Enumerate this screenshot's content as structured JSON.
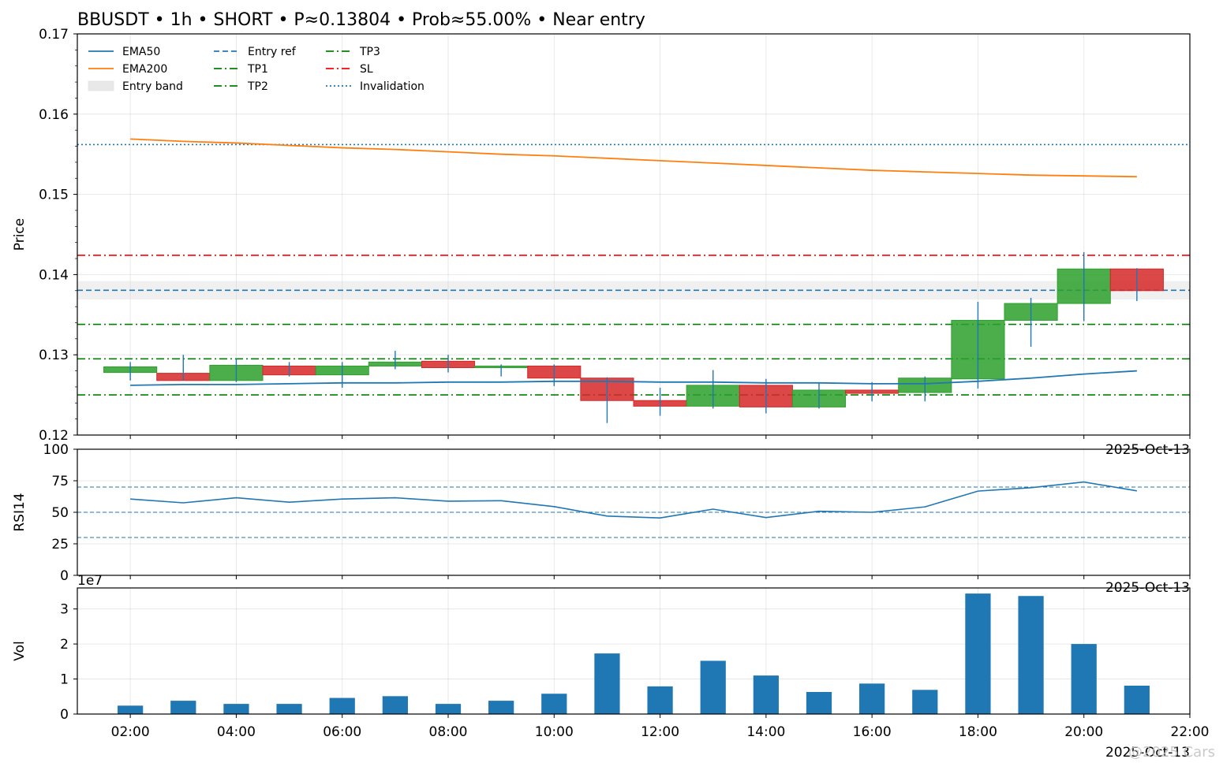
{
  "title": "BBUSDT • 1h • SHORT • P≈0.13804 • Prob≈55.00% • Near entry",
  "watermark": "@2025 Cars",
  "chart_data": [
    {
      "type": "candlestick",
      "ylabel": "Price",
      "ylim": [
        0.12,
        0.17
      ],
      "yticks": [
        "0.12",
        "0.13",
        "0.14",
        "0.15",
        "0.16",
        "0.17"
      ],
      "date_label": "2025-Oct-13",
      "x_hours": [
        2,
        3,
        4,
        5,
        6,
        7,
        8,
        9,
        10,
        11,
        12,
        13,
        14,
        15,
        16,
        17,
        18,
        19,
        20,
        21
      ],
      "ohlc": [
        [
          0.1278,
          0.1291,
          0.1268,
          0.1285
        ],
        [
          0.1277,
          0.13,
          0.1268,
          0.1268
        ],
        [
          0.1268,
          0.1295,
          0.1266,
          0.1287
        ],
        [
          0.1286,
          0.1291,
          0.1273,
          0.1275
        ],
        [
          0.1275,
          0.1291,
          0.1259,
          0.1286
        ],
        [
          0.1286,
          0.1305,
          0.1282,
          0.1291
        ],
        [
          0.1292,
          0.13,
          0.1278,
          0.1284
        ],
        [
          0.1284,
          0.1288,
          0.1273,
          0.1286
        ],
        [
          0.1286,
          0.1288,
          0.1261,
          0.1271
        ],
        [
          0.1271,
          0.1272,
          0.1215,
          0.1243
        ],
        [
          0.1243,
          0.1259,
          0.1224,
          0.1236
        ],
        [
          0.1236,
          0.1281,
          0.1233,
          0.1262
        ],
        [
          0.1262,
          0.127,
          0.1227,
          0.1235
        ],
        [
          0.1235,
          0.1265,
          0.1233,
          0.1256
        ],
        [
          0.1256,
          0.1266,
          0.1242,
          0.1252
        ],
        [
          0.1253,
          0.1273,
          0.1242,
          0.1271
        ],
        [
          0.127,
          0.1366,
          0.1258,
          0.1343
        ],
        [
          0.1343,
          0.1371,
          0.131,
          0.1364
        ],
        [
          0.1364,
          0.1428,
          0.1342,
          0.1407
        ],
        [
          0.1407,
          0.1408,
          0.1367,
          0.138
        ]
      ],
      "series": [
        {
          "name": "EMA50",
          "color": "#1f77b4",
          "values": [
            0.1262,
            0.1263,
            0.1263,
            0.1264,
            0.1265,
            0.1265,
            0.1266,
            0.1266,
            0.1267,
            0.1267,
            0.1266,
            0.1266,
            0.1265,
            0.1265,
            0.1264,
            0.1264,
            0.1267,
            0.1271,
            0.1276,
            0.128
          ]
        },
        {
          "name": "EMA200",
          "color": "#ff7f0e",
          "values": [
            0.1569,
            0.1566,
            0.1564,
            0.1561,
            0.1558,
            0.1556,
            0.1553,
            0.155,
            0.1548,
            0.1545,
            0.1542,
            0.1539,
            0.1536,
            0.1533,
            0.153,
            0.1528,
            0.1526,
            0.1524,
            0.1523,
            0.1522
          ]
        }
      ],
      "levels": [
        {
          "name": "Entry ref",
          "value": 0.13804,
          "color": "#1f77b4",
          "style": "dashed"
        },
        {
          "name": "TP1",
          "value": 0.125,
          "color": "#008000",
          "style": "dashdot"
        },
        {
          "name": "TP2",
          "value": 0.1295,
          "color": "#008000",
          "style": "dashdot"
        },
        {
          "name": "TP3",
          "value": 0.1338,
          "color": "#008000",
          "style": "dashdot"
        },
        {
          "name": "SL",
          "value": 0.1424,
          "color": "#ff0000",
          "style": "dashdot"
        },
        {
          "name": "Invalidation",
          "value": 0.1562,
          "color": "#1f77b4",
          "style": "dotted"
        }
      ],
      "entry_band": {
        "name": "Entry band",
        "low": 0.1369,
        "high": 0.1392,
        "color": "#d3d3d3"
      },
      "legend": {
        "placement": "top-left",
        "entries": [
          "EMA50",
          "EMA200",
          "Entry band",
          "Entry ref",
          "TP1",
          "TP2",
          "TP3",
          "SL",
          "Invalidation"
        ]
      },
      "up_color": "#2ca02c",
      "down_color": "#d62728",
      "grid": true
    },
    {
      "type": "line",
      "ylabel": "RSI14",
      "ylim": [
        0,
        100
      ],
      "yticks": [
        "0",
        "25",
        "50",
        "75",
        "100"
      ],
      "date_label": "2025-Oct-13",
      "x_hours": [
        2,
        3,
        4,
        5,
        6,
        7,
        8,
        9,
        10,
        11,
        12,
        13,
        14,
        15,
        16,
        17,
        18,
        19,
        20,
        21
      ],
      "series": [
        {
          "name": "",
          "color": "#1f77b4",
          "values": [
            60.5,
            57.5,
            61.5,
            58,
            60.5,
            61.5,
            58.8,
            59.2,
            54.5,
            47,
            45.5,
            52.5,
            45.8,
            50.8,
            50,
            54.3,
            66.8,
            69.5,
            74,
            67
          ]
        }
      ],
      "hlines": [
        70,
        50,
        30
      ],
      "grid": true
    },
    {
      "type": "bar",
      "ylabel": "Vol",
      "ylim": [
        0,
        36000000
      ],
      "yticks": [
        "0",
        "1",
        "2",
        "3"
      ],
      "offset_label": "1e7",
      "date_label": "2025-Oct-13",
      "xlim_hours": [
        1,
        22
      ],
      "xticks": [
        "02:00",
        "04:00",
        "06:00",
        "08:00",
        "10:00",
        "12:00",
        "14:00",
        "16:00",
        "18:00",
        "20:00",
        "22:00"
      ],
      "x_hours": [
        2,
        3,
        4,
        5,
        6,
        7,
        8,
        9,
        10,
        11,
        12,
        13,
        14,
        15,
        16,
        17,
        18,
        19,
        20,
        21
      ],
      "values": [
        2400000,
        3800000,
        2900000,
        2900000,
        4600000,
        5100000,
        2900000,
        3800000,
        5800000,
        17300000,
        7900000,
        15200000,
        11000000,
        6300000,
        8700000,
        6900000,
        34400000,
        33700000,
        20000000,
        8100000
      ],
      "color": "#1f77b4",
      "grid": true
    }
  ]
}
